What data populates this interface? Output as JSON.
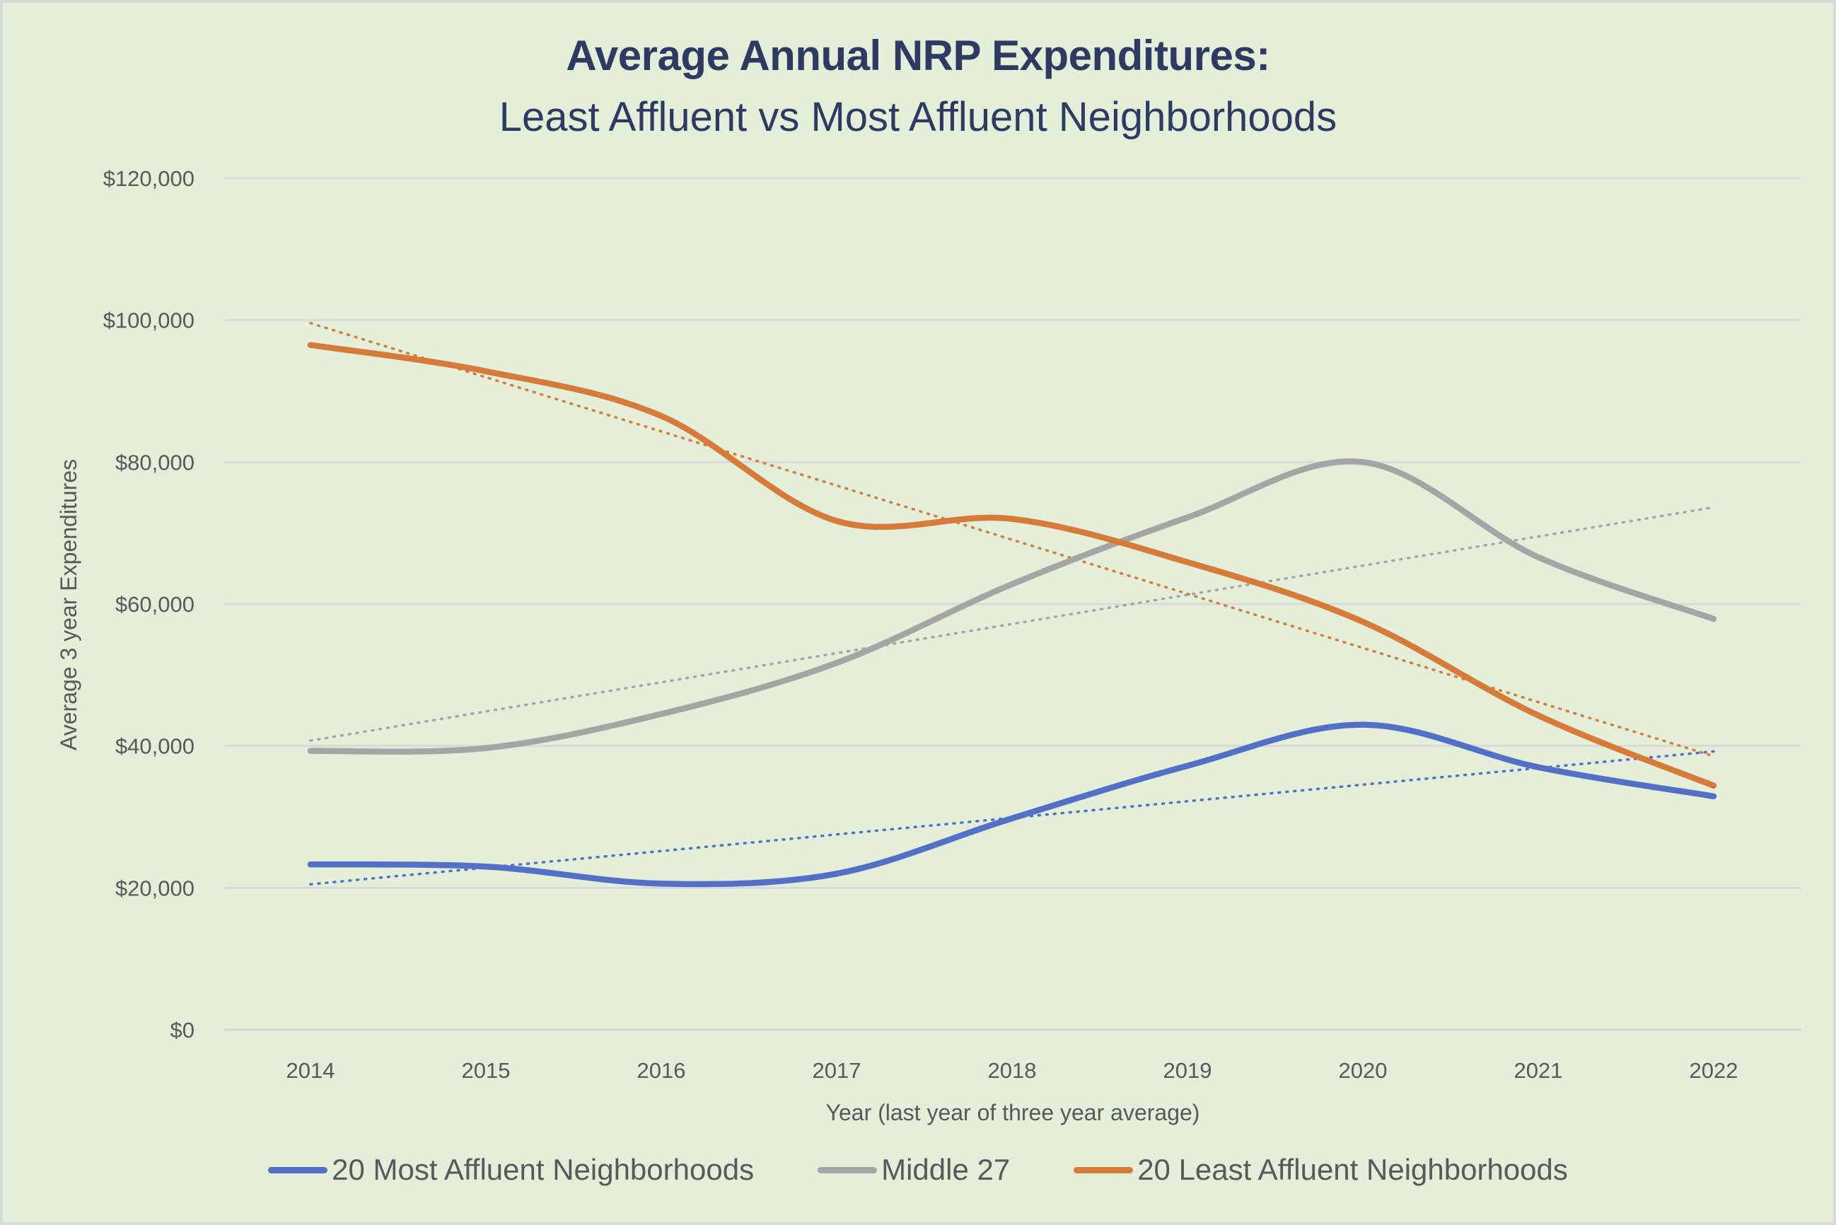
{
  "chart_data": {
    "type": "line",
    "title": "Average Annual NRP Expenditures:",
    "subtitle": "Least Affluent vs Most Affluent Neighborhoods",
    "xlabel": "Year (last year of three year average)",
    "ylabel": "Average 3 year Expenditures",
    "categories": [
      "2014",
      "2015",
      "2016",
      "2017",
      "2018",
      "2019",
      "2020",
      "2021",
      "2022"
    ],
    "ylim": [
      0,
      120000
    ],
    "yticks": [
      0,
      20000,
      40000,
      60000,
      80000,
      100000,
      120000
    ],
    "ytick_labels": [
      "$0",
      "$20,000",
      "$40,000",
      "$60,000",
      "$80,000",
      "$100,000",
      "$120,000"
    ],
    "grid": true,
    "smoothed": true,
    "legend_position": "bottom",
    "series": [
      {
        "name": "20 Most Affluent Neighborhoods",
        "color": "#5470C6",
        "values": [
          23300,
          23000,
          20600,
          22000,
          29800,
          37200,
          43000,
          37000,
          32900
        ],
        "trendline": "linear-dotted"
      },
      {
        "name": "Middle 27",
        "color": "#A5A5A5",
        "values": [
          39300,
          39700,
          44500,
          51700,
          62800,
          72200,
          80000,
          66600,
          57900
        ],
        "trendline": "linear-dotted"
      },
      {
        "name": "20 Least Affluent Neighborhoods",
        "color": "#D77B3A",
        "values": [
          96500,
          92800,
          86500,
          71700,
          72000,
          65900,
          57500,
          44300,
          34400
        ],
        "trendline": "linear-dotted"
      }
    ]
  }
}
